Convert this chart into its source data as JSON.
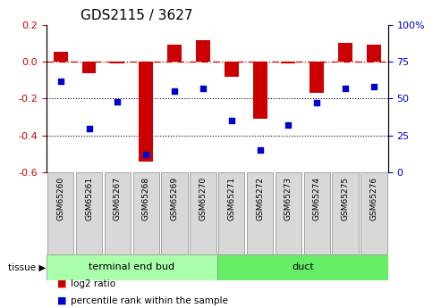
{
  "title": "GDS2115 / 3627",
  "samples": [
    "GSM65260",
    "GSM65261",
    "GSM65267",
    "GSM65268",
    "GSM65269",
    "GSM65270",
    "GSM65271",
    "GSM65272",
    "GSM65273",
    "GSM65274",
    "GSM65275",
    "GSM65276"
  ],
  "log2_ratio": [
    0.055,
    -0.065,
    -0.01,
    -0.54,
    0.09,
    0.115,
    -0.08,
    -0.31,
    -0.01,
    -0.17,
    0.1,
    0.09
  ],
  "percentile_rank": [
    62,
    30,
    48,
    12,
    55,
    57,
    35,
    15,
    32,
    47,
    57,
    58
  ],
  "tissue_groups": [
    {
      "label": "terminal end bud",
      "start": 0,
      "end": 6,
      "color": "#aaffaa"
    },
    {
      "label": "duct",
      "start": 6,
      "end": 12,
      "color": "#66ee66"
    }
  ],
  "bar_color": "#cc0000",
  "dot_color": "#0000cc",
  "hline_color": "#cc0000",
  "ylim_left": [
    -0.6,
    0.2
  ],
  "ylim_right": [
    0,
    100
  ],
  "yticks_left": [
    -0.6,
    -0.4,
    -0.2,
    0.0,
    0.2
  ],
  "yticks_right": [
    0,
    25,
    50,
    75,
    100
  ],
  "ytick_labels_right": [
    "0",
    "25",
    "50",
    "75",
    "100%"
  ],
  "dotted_lines": [
    -0.2,
    -0.4
  ],
  "background_color": "#ffffff",
  "bar_width": 0.5,
  "label_fontsize": 6.5,
  "title_fontsize": 11
}
